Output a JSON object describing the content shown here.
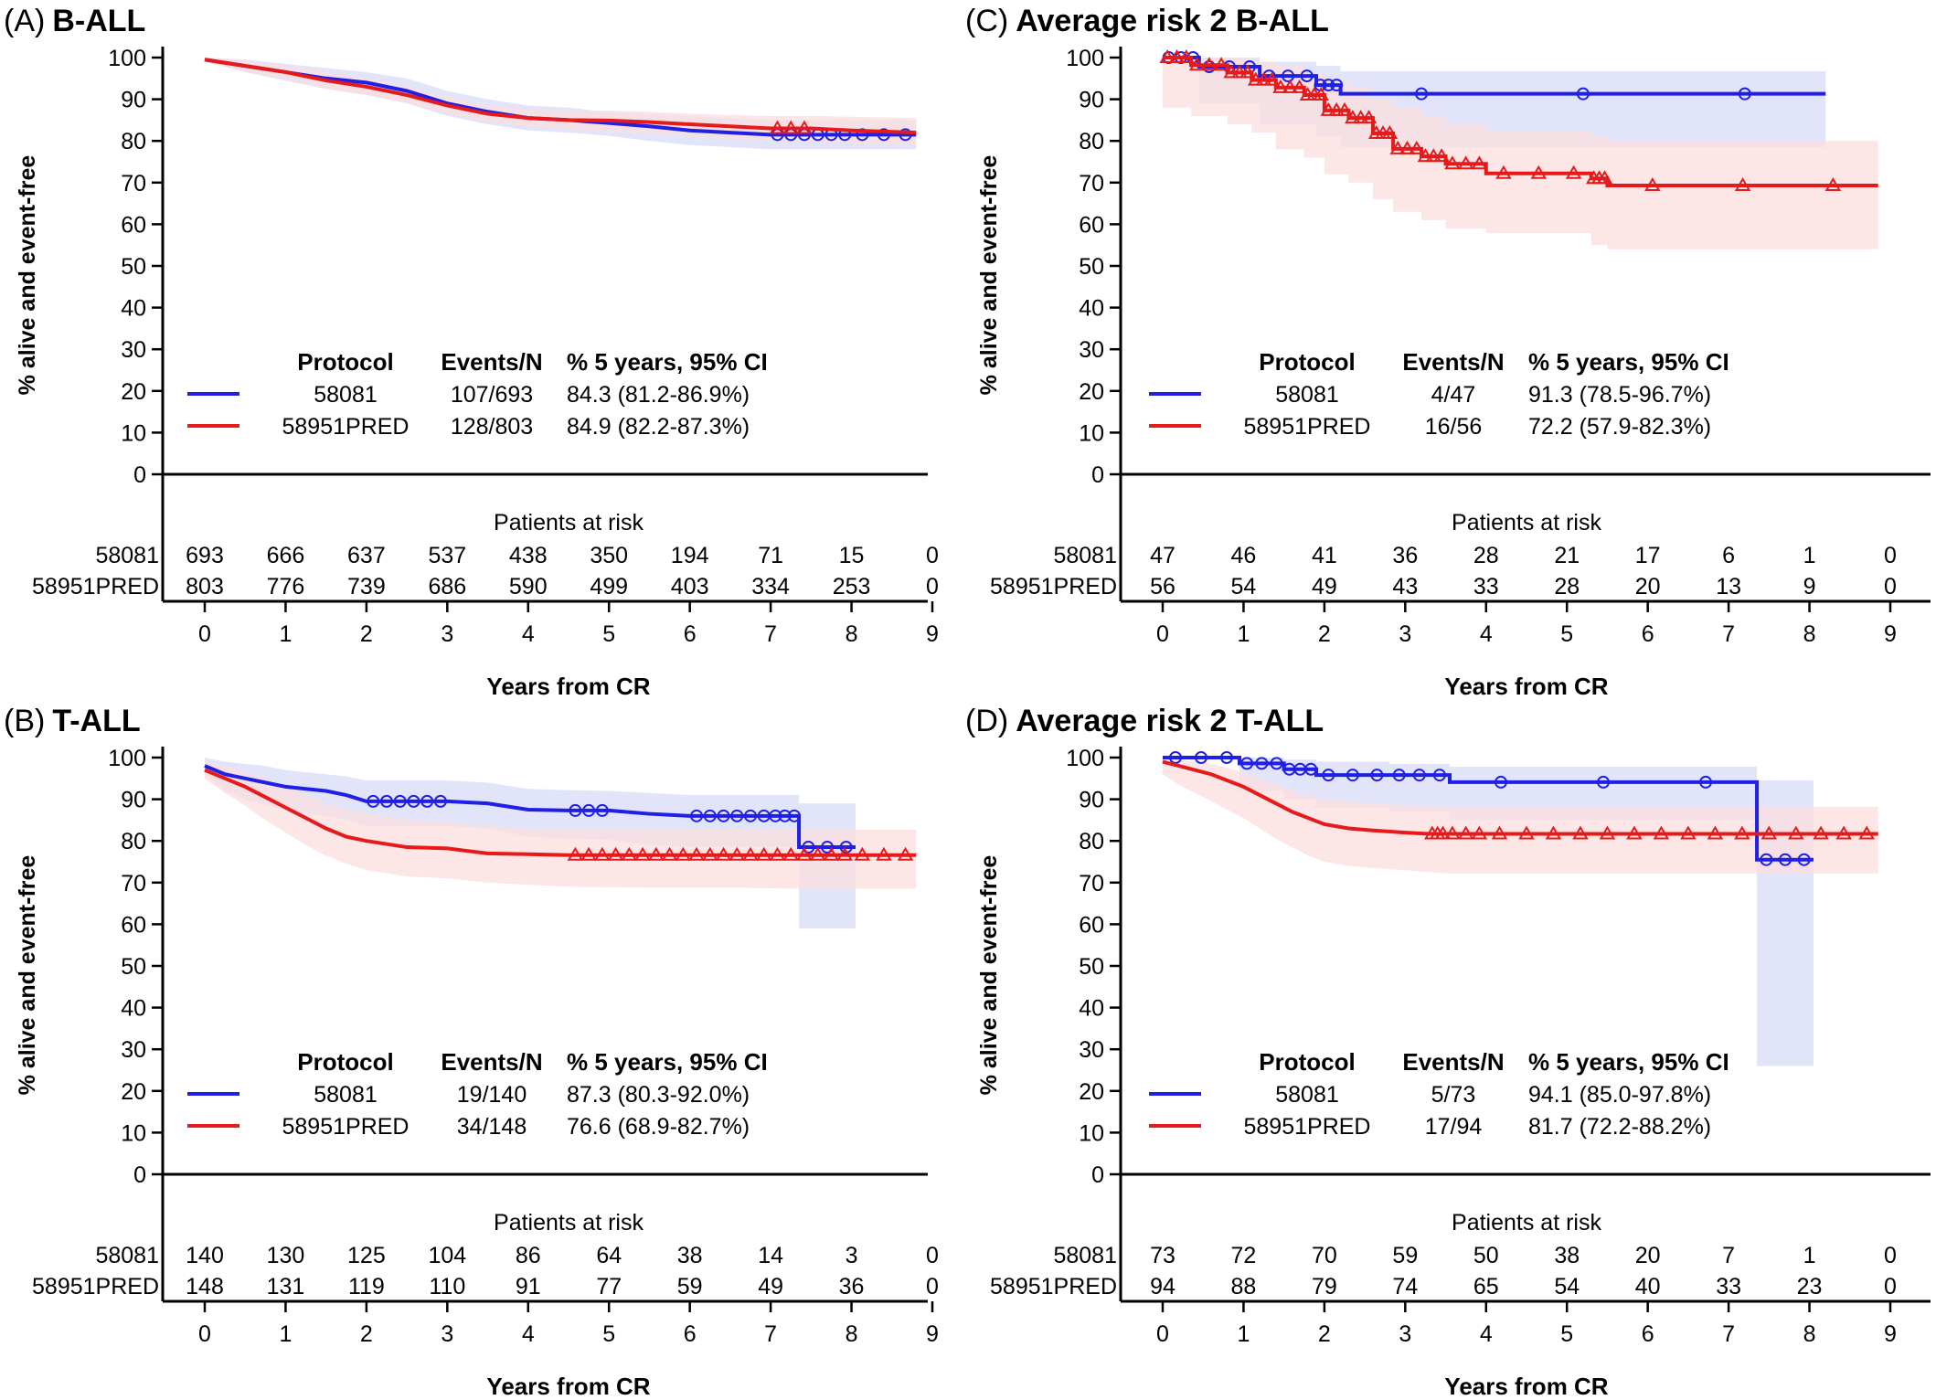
{
  "figure": {
    "colors": {
      "blue": "#1f1fe6",
      "red": "#e61a1a",
      "blue_ci": "#d8dcf7",
      "red_ci": "#fbdede"
    },
    "legend_headers": {
      "protocol": "Protocol",
      "events": "Events/N",
      "pct": "% 5 years, 95% CI"
    },
    "risk_header": "Patients at risk",
    "ylabel": "% alive and event-free",
    "xlabel": "Years from CR"
  },
  "chart_data": [
    {
      "type": "line",
      "panel": "(A)",
      "title": "B-ALL",
      "xlabel": "Years from CR",
      "ylabel": "% alive and event-free",
      "xlim": [
        0,
        9
      ],
      "ylim": [
        0,
        100
      ],
      "x_ticks": [
        0,
        1,
        2,
        3,
        4,
        5,
        6,
        7,
        8,
        9
      ],
      "y_ticks": [
        0,
        10,
        20,
        30,
        40,
        50,
        60,
        70,
        80,
        90,
        100
      ],
      "series": [
        {
          "name": "58081",
          "color": "blue",
          "marker": "circle",
          "x": [
            0,
            0.5,
            1,
            1.5,
            2,
            2.5,
            3,
            3.5,
            4,
            4.5,
            5,
            5.5,
            6,
            6.5,
            7,
            7.5,
            8,
            8.8
          ],
          "y": [
            99.5,
            98,
            96.5,
            95,
            94,
            92,
            89,
            87,
            85.5,
            85,
            84.3,
            83.5,
            82.5,
            82,
            81.5,
            81.5,
            81.5,
            81.5
          ],
          "ci_low": [
            99,
            96.5,
            94.5,
            92.5,
            91,
            89,
            86,
            84,
            82.5,
            82,
            81.2,
            80,
            79,
            78.5,
            78,
            78,
            78,
            78
          ],
          "ci_high": [
            100,
            99.5,
            98.5,
            97.5,
            96.5,
            95,
            92,
            90,
            88.5,
            88,
            86.9,
            86.5,
            86,
            85.5,
            85,
            85,
            85,
            85
          ],
          "events": "107/693",
          "five_year": "84.3 (81.2-86.9%)",
          "at_risk": [
            "693",
            "666",
            "637",
            "537",
            "438",
            "350",
            "194",
            "71",
            "15",
            "0"
          ]
        },
        {
          "name": "58951PRED",
          "color": "red",
          "marker": "triangle",
          "x": [
            0,
            0.5,
            1,
            1.5,
            2,
            2.5,
            3,
            3.5,
            4,
            4.5,
            5,
            5.5,
            6,
            6.5,
            7,
            7.5,
            8,
            8.8
          ],
          "y": [
            99.5,
            98,
            96.5,
            94.5,
            93,
            91,
            88.5,
            86.5,
            85.5,
            85,
            84.9,
            84.5,
            84,
            83.5,
            83,
            83,
            82.5,
            82
          ],
          "ci_low": [
            99,
            96.5,
            95,
            92.5,
            91,
            89,
            86.5,
            84.5,
            83.5,
            82.8,
            82.2,
            81.8,
            81.2,
            80.5,
            80,
            79.8,
            79.5,
            79
          ],
          "ci_high": [
            100,
            99.5,
            98,
            96.5,
            95,
            93,
            90.5,
            88.5,
            87.5,
            87.2,
            87.3,
            87,
            86.5,
            86.2,
            86,
            86,
            85.8,
            85.5
          ],
          "events": "128/803",
          "five_year": "84.9 (82.2-87.3%)",
          "at_risk": [
            "803",
            "776",
            "739",
            "686",
            "590",
            "499",
            "403",
            "334",
            "253",
            "0"
          ]
        }
      ]
    },
    {
      "type": "line",
      "panel": "(C)",
      "title": "Average risk 2 B-ALL",
      "xlabel": "Years from CR",
      "ylabel": "% alive and event-free",
      "xlim": [
        0,
        9
      ],
      "ylim": [
        0,
        100
      ],
      "x_ticks": [
        0,
        1,
        2,
        3,
        4,
        5,
        6,
        7,
        8,
        9
      ],
      "y_ticks": [
        0,
        10,
        20,
        30,
        40,
        50,
        60,
        70,
        80,
        90,
        100
      ],
      "series": [
        {
          "name": "58081",
          "color": "blue",
          "marker": "circle",
          "x": [
            0,
            0.45,
            0.45,
            1.2,
            1.2,
            1.9,
            1.9,
            2.2,
            2.2,
            8.2
          ],
          "y": [
            100,
            100,
            97.8,
            97.8,
            95.6,
            95.6,
            93.4,
            93.4,
            91.3,
            91.3
          ],
          "ci_low": [
            100,
            100,
            89,
            89,
            84,
            84,
            81,
            81,
            78.5,
            78.5
          ],
          "ci_high": [
            100,
            100,
            100,
            100,
            99,
            99,
            98,
            98,
            96.7,
            96.7
          ],
          "events": "4/47",
          "five_year": "91.3 (78.5-96.7%)",
          "at_risk": [
            "47",
            "46",
            "41",
            "36",
            "28",
            "21",
            "17",
            "6",
            "1",
            "0"
          ]
        },
        {
          "name": "58951PRED",
          "color": "red",
          "marker": "triangle",
          "x": [
            0,
            0.35,
            0.35,
            0.8,
            0.8,
            1.1,
            1.1,
            1.4,
            1.4,
            1.75,
            1.75,
            2.0,
            2.0,
            2.3,
            2.3,
            2.6,
            2.6,
            2.85,
            2.85,
            3.2,
            3.2,
            3.5,
            3.5,
            4.0,
            4.0,
            5.3,
            5.3,
            5.5,
            5.5,
            8.85
          ],
          "y": [
            100,
            100,
            98.2,
            98.2,
            96.4,
            96.4,
            94.6,
            94.6,
            92.8,
            92.8,
            91.0,
            91.0,
            87.3,
            87.3,
            85.5,
            85.5,
            81.8,
            81.8,
            78.1,
            78.1,
            76.3,
            76.3,
            74.5,
            74.5,
            72.2,
            72.2,
            71.0,
            71.0,
            69.3,
            69.3
          ],
          "ci_low": [
            88,
            88,
            86,
            86,
            84,
            84,
            82,
            82,
            78,
            78,
            76,
            76,
            72,
            72,
            70,
            70,
            66,
            66,
            63,
            63,
            61,
            61,
            59,
            59,
            57.9,
            57.9,
            55,
            55,
            54,
            54
          ],
          "ci_high": [
            100,
            100,
            100,
            100,
            100,
            100,
            99,
            99,
            98,
            98,
            96,
            96,
            94,
            94,
            93,
            93,
            90,
            90,
            88,
            88,
            86,
            86,
            84,
            84,
            82.3,
            82.3,
            81,
            81,
            80,
            80
          ],
          "events": "16/56",
          "five_year": "72.2 (57.9-82.3%)",
          "at_risk": [
            "56",
            "54",
            "49",
            "43",
            "33",
            "28",
            "20",
            "13",
            "9",
            "0"
          ]
        }
      ]
    },
    {
      "type": "line",
      "panel": "(B)",
      "title": "T-ALL",
      "xlabel": "Years from CR",
      "ylabel": "% alive and event-free",
      "xlim": [
        0,
        9
      ],
      "ylim": [
        0,
        100
      ],
      "x_ticks": [
        0,
        1,
        2,
        3,
        4,
        5,
        6,
        7,
        8,
        9
      ],
      "y_ticks": [
        0,
        10,
        20,
        30,
        40,
        50,
        60,
        70,
        80,
        90,
        100
      ],
      "series": [
        {
          "name": "58081",
          "color": "blue",
          "marker": "circle",
          "x": [
            0,
            0.25,
            0.5,
            0.75,
            1,
            1.25,
            1.5,
            1.75,
            2,
            2.5,
            3,
            3.5,
            4,
            4.5,
            5,
            5.5,
            6,
            6.5,
            7,
            7.35,
            7.35,
            8.05
          ],
          "y": [
            98,
            96,
            95,
            94,
            93,
            92.5,
            92,
            91,
            89.5,
            89.5,
            89.5,
            89,
            87.5,
            87.3,
            87.3,
            86.5,
            86,
            86,
            86,
            86,
            78.5,
            78.5
          ],
          "ci_low": [
            96,
            92,
            90,
            88.5,
            87.5,
            86.5,
            86,
            85,
            83.5,
            83.5,
            83.5,
            83,
            81,
            80.5,
            80.3,
            79,
            78.5,
            78.5,
            78.5,
            78.5,
            59,
            59
          ],
          "ci_high": [
            100,
            99,
            98.5,
            98,
            97,
            96.5,
            96,
            95.5,
            94.5,
            94.5,
            94.5,
            94,
            92.5,
            92.2,
            92.0,
            91.5,
            91,
            91,
            91,
            91,
            89,
            89
          ],
          "events": "19/140",
          "five_year": "87.3 (80.3-92.0%)",
          "at_risk": [
            "140",
            "130",
            "125",
            "104",
            "86",
            "64",
            "38",
            "14",
            "3",
            "0"
          ]
        },
        {
          "name": "58951PRED",
          "color": "red",
          "marker": "triangle",
          "x": [
            0,
            0.25,
            0.5,
            0.75,
            1,
            1.25,
            1.5,
            1.75,
            2,
            2.5,
            3,
            3.5,
            4,
            4.5,
            5,
            5.5,
            6,
            6.5,
            7,
            7.5,
            8,
            8.8
          ],
          "y": [
            97,
            95,
            93,
            90.5,
            88,
            85.5,
            83,
            81,
            80,
            78.5,
            78.2,
            77,
            76.8,
            76.6,
            76.6,
            76.6,
            76.6,
            76.6,
            76.6,
            76.6,
            76.6,
            76.6
          ],
          "ci_low": [
            95,
            91.5,
            88.5,
            85,
            82,
            79,
            76.5,
            74.5,
            73,
            71.5,
            71,
            70,
            69.5,
            69,
            68.9,
            68.8,
            68.8,
            68.8,
            68.6,
            68.5,
            68.5,
            68.5
          ],
          "ci_high": [
            99,
            98,
            96.5,
            95,
            93,
            91,
            89,
            87.5,
            86.5,
            85,
            84.5,
            83.5,
            83,
            82.8,
            82.7,
            82.7,
            82.7,
            82.7,
            82.7,
            82.7,
            82.7,
            82.7
          ],
          "events": "34/148",
          "five_year": "76.6 (68.9-82.7%)",
          "at_risk": [
            "148",
            "131",
            "119",
            "110",
            "91",
            "77",
            "59",
            "49",
            "36",
            "0"
          ]
        }
      ]
    },
    {
      "type": "line",
      "panel": "(D)",
      "title": "Average risk 2 T-ALL",
      "xlabel": "Years from CR",
      "ylabel": "% alive and event-free",
      "xlim": [
        0,
        9
      ],
      "ylim": [
        0,
        100
      ],
      "x_ticks": [
        0,
        1,
        2,
        3,
        4,
        5,
        6,
        7,
        8,
        9
      ],
      "y_ticks": [
        0,
        10,
        20,
        30,
        40,
        50,
        60,
        70,
        80,
        90,
        100
      ],
      "series": [
        {
          "name": "58081",
          "color": "blue",
          "marker": "circle",
          "x": [
            0,
            0.95,
            0.95,
            1.5,
            1.5,
            1.9,
            1.9,
            2.8,
            2.8,
            3.55,
            3.55,
            7.35,
            7.35,
            8.05
          ],
          "y": [
            100,
            100,
            98.6,
            98.6,
            97.2,
            97.2,
            95.8,
            95.8,
            95.8,
            95.8,
            94.1,
            94.1,
            75.5,
            75.5
          ],
          "ci_low": [
            100,
            100,
            92,
            92,
            90,
            90,
            88,
            88,
            87,
            87,
            85,
            85,
            26,
            26
          ],
          "ci_high": [
            100,
            100,
            100,
            100,
            99.5,
            99.5,
            99,
            99,
            98.5,
            98.5,
            97.8,
            97.8,
            94.5,
            94.5
          ],
          "events": "5/73",
          "five_year": "94.1 (85.0-97.8%)",
          "at_risk": [
            "73",
            "72",
            "70",
            "59",
            "50",
            "38",
            "20",
            "7",
            "1",
            "0"
          ]
        },
        {
          "name": "58951PRED",
          "color": "red",
          "marker": "triangle",
          "x": [
            0,
            0.2,
            0.4,
            0.6,
            0.8,
            1.0,
            1.2,
            1.4,
            1.6,
            1.8,
            2.0,
            2.3,
            2.6,
            3.0,
            3.3,
            3.5,
            4.0,
            5.0,
            6.0,
            7.0,
            8.0,
            8.85
          ],
          "y": [
            99,
            98,
            97,
            96,
            94.5,
            93,
            91,
            89,
            87,
            85.5,
            84,
            83,
            82.5,
            82,
            81.7,
            81.7,
            81.7,
            81.7,
            81.7,
            81.7,
            81.7,
            81.7
          ],
          "ci_low": [
            96,
            93.5,
            91.5,
            89.5,
            87.5,
            85.5,
            83,
            80.5,
            78.5,
            76.5,
            75,
            74,
            73.5,
            73,
            72.5,
            72.2,
            72.2,
            72.2,
            72.2,
            72.2,
            72.2,
            72.2
          ],
          "ci_high": [
            100,
            99.5,
            99,
            98.5,
            97.5,
            96.5,
            95,
            93.5,
            92,
            91,
            90,
            89.5,
            89,
            88.5,
            88.3,
            88.2,
            88.2,
            88.2,
            88.2,
            88.2,
            88.2,
            88.2
          ],
          "events": "17/94",
          "five_year": "81.7 (72.2-88.2%)",
          "at_risk": [
            "94",
            "88",
            "79",
            "74",
            "65",
            "54",
            "40",
            "33",
            "23",
            "0"
          ]
        }
      ]
    }
  ]
}
